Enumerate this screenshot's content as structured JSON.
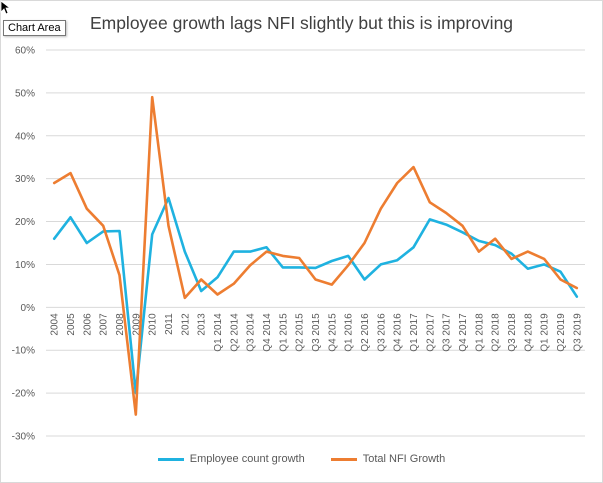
{
  "tooltip": {
    "label": "Chart Area"
  },
  "colors": {
    "employee": "#1fb2e0",
    "nfi": "#ed7d31",
    "grid": "#d9d9d9"
  },
  "chart_data": {
    "type": "line",
    "title": "Employee growth lags NFI slightly but this is improving",
    "xlabel": "",
    "ylabel": "",
    "ylim": [
      -30,
      60
    ],
    "yticks": [
      -30,
      -20,
      -10,
      0,
      10,
      20,
      30,
      40,
      50,
      60
    ],
    "ytick_labels": [
      "-30%",
      "-20%",
      "-10%",
      "0%",
      "10%",
      "20%",
      "30%",
      "40%",
      "50%",
      "60%"
    ],
    "grid": true,
    "legend_position": "bottom",
    "categories": [
      "2004",
      "2005",
      "2006",
      "2007",
      "2008",
      "2009",
      "2010",
      "2011",
      "2012",
      "2013",
      "Q1 2014",
      "Q2 2014",
      "Q3 2014",
      "Q4 2014",
      "Q1 2015",
      "Q2 2015",
      "Q3 2015",
      "Q4 2015",
      "Q1 2016",
      "Q2 2016",
      "Q3 2016",
      "Q4 2016",
      "Q1 2017",
      "Q2 2017",
      "Q3 2017",
      "Q4 2017",
      "Q1 2018",
      "Q2 2018",
      "Q3 2018",
      "Q4 2018",
      "Q1 2019",
      "Q2 2019",
      "Q3 2019"
    ],
    "series": [
      {
        "name": "Employee count growth",
        "values": [
          16,
          21,
          15,
          17.7,
          17.8,
          -20,
          17,
          25.5,
          13,
          3.8,
          7,
          13,
          13,
          14,
          9.3,
          9.3,
          9.2,
          10.8,
          12,
          6.5,
          10,
          11,
          14,
          20.5,
          19.3,
          17.5,
          15.5,
          14.5,
          12.5,
          9,
          10,
          8.3,
          2.5
        ]
      },
      {
        "name": "Total NFI Growth",
        "values": [
          29,
          31.3,
          23,
          19,
          7.5,
          -25,
          49,
          19,
          2.2,
          6.5,
          3,
          5.5,
          9.8,
          13,
          12,
          11.5,
          6.5,
          5.3,
          9.8,
          15,
          23,
          29,
          32.7,
          24.5,
          22,
          19,
          13,
          16,
          11.3,
          13,
          11.3,
          6.5,
          4.5
        ]
      }
    ]
  }
}
